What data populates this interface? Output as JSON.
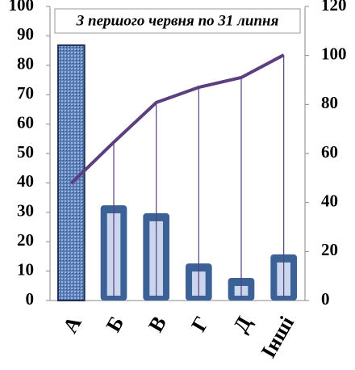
{
  "chart_data": {
    "type": "bar",
    "title": "З першого червня по 31 липня",
    "categories": [
      "А",
      "Б",
      "В",
      "Г",
      "Д",
      "Інші"
    ],
    "series": [
      {
        "type": "bar",
        "color": "#3b6196",
        "values": [
          86.8,
          32.4,
          29.7,
          12.6,
          7.7,
          15.7
        ]
      },
      {
        "type": "line",
        "axis": "y2",
        "color": "#5b3f7f",
        "values": [
          47.8,
          64.6,
          80.8,
          87,
          91,
          100.2
        ]
      }
    ],
    "ylim": [
      0,
      100
    ],
    "yticks": [
      0,
      10,
      20,
      30,
      40,
      50,
      60,
      70,
      80,
      90,
      100
    ],
    "y2lim": [
      0,
      120
    ],
    "y2ticks": [
      0,
      20,
      40,
      60,
      80,
      100,
      120
    ],
    "grid": false
  }
}
